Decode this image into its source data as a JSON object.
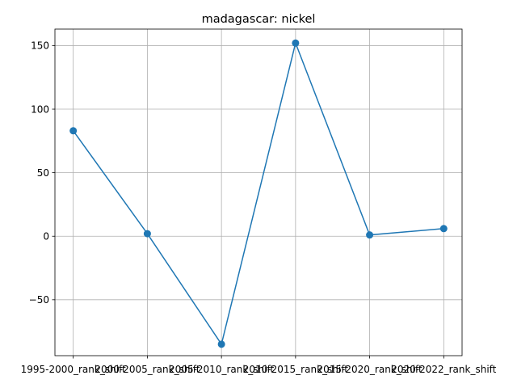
{
  "chart_data": {
    "type": "line",
    "title": "madagascar: nickel",
    "xlabel": "",
    "ylabel": "",
    "categories": [
      "1995-2000_rank_shift",
      "2000-2005_rank_shift",
      "2005-2010_rank_shift",
      "2010-2015_rank_shift",
      "2015-2020_rank_shift",
      "2020-2022_rank_shift"
    ],
    "values": [
      83,
      2,
      -85,
      152,
      1,
      6
    ],
    "ylim": [
      -94,
      163
    ],
    "yticks": [
      -50,
      0,
      50,
      100,
      150
    ],
    "ytick_labels": [
      "−50",
      "0",
      "50",
      "100",
      "150"
    ],
    "grid": true,
    "line_color": "#1f77b4",
    "marker": "circle"
  }
}
